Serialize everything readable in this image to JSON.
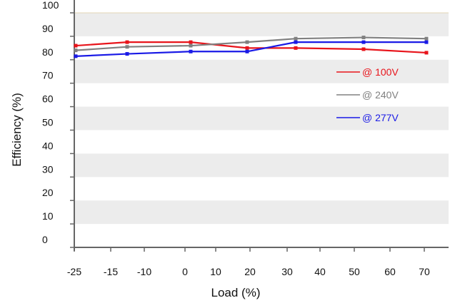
{
  "chart_data": {
    "type": "line",
    "xlabel": "Load (%)",
    "ylabel": "Efficiency (%)",
    "x_tick_labels": [
      "-25",
      "-15",
      "-10",
      "0",
      "10",
      "20",
      "30",
      "40",
      "50",
      "60",
      "70"
    ],
    "y_ticks": [
      0,
      10,
      20,
      30,
      40,
      50,
      60,
      70,
      80,
      90,
      100
    ],
    "ylim": [
      0,
      100
    ],
    "grid": "alternating horizontal bands",
    "legend_position": "right-center",
    "series": [
      {
        "name": "@ 100V",
        "color": "#e8141b",
        "points": [
          [
            -25,
            86
          ],
          [
            -12.5,
            87.5
          ],
          [
            0.5,
            87.5
          ],
          [
            19,
            85
          ],
          [
            35.5,
            85
          ],
          [
            50,
            84.5
          ],
          [
            69.5,
            83
          ]
        ]
      },
      {
        "name": "@ 240V",
        "color": "#808080",
        "points": [
          [
            -25,
            84
          ],
          [
            -12.5,
            85.5
          ],
          [
            0.5,
            86
          ],
          [
            19,
            87.5
          ],
          [
            35.5,
            89
          ],
          [
            50,
            89.5
          ],
          [
            69.5,
            89
          ]
        ]
      },
      {
        "name": "@ 277V",
        "color": "#1a1ae6",
        "points": [
          [
            -25,
            81.5
          ],
          [
            -12.5,
            82.5
          ],
          [
            0.5,
            83.5
          ],
          [
            19,
            83.5
          ],
          [
            35.5,
            87.5
          ],
          [
            50,
            87.5
          ],
          [
            69.5,
            87.5
          ]
        ]
      }
    ]
  }
}
